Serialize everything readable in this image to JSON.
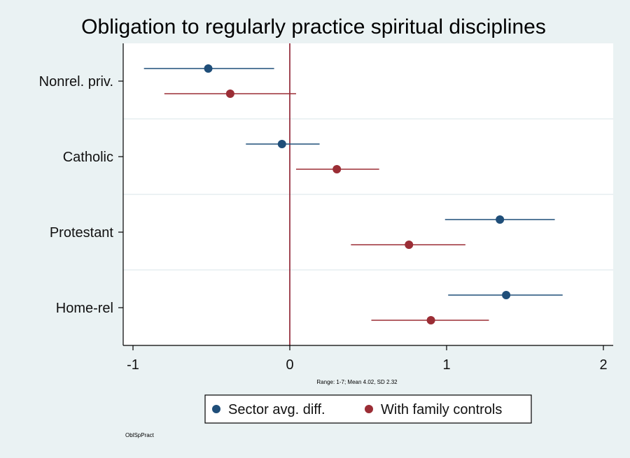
{
  "chart_data": {
    "type": "scatter",
    "subtype": "coefficient-plot",
    "title": "Obligation to regularly practice spiritual disciplines",
    "xlabel": "",
    "ylabel": "",
    "x_note": "Range: 1-7; Mean 4.02, SD 2.32",
    "xlim": [
      -1.05,
      2.05
    ],
    "x_ticks": [
      -1,
      0,
      1,
      2
    ],
    "x_tick_labels": [
      "-1",
      "0",
      "1",
      "2"
    ],
    "reference_line": 0,
    "grid": "horizontal",
    "categories": [
      "Nonrel. priv.",
      "Catholic",
      "Protestant",
      "Home-rel"
    ],
    "series": [
      {
        "name": "Sector avg. diff.",
        "color": "#1f4e79",
        "points": [
          {
            "estimate": -0.52,
            "low": -0.93,
            "high": -0.1
          },
          {
            "estimate": -0.05,
            "low": -0.28,
            "high": 0.19
          },
          {
            "estimate": 1.34,
            "low": 0.99,
            "high": 1.69
          },
          {
            "estimate": 1.38,
            "low": 1.01,
            "high": 1.74
          }
        ]
      },
      {
        "name": "With family controls",
        "color": "#9b2d35",
        "points": [
          {
            "estimate": -0.38,
            "low": -0.8,
            "high": 0.04
          },
          {
            "estimate": 0.3,
            "low": 0.04,
            "high": 0.57
          },
          {
            "estimate": 0.76,
            "low": 0.39,
            "high": 1.12
          },
          {
            "estimate": 0.9,
            "low": 0.52,
            "high": 1.27
          }
        ]
      }
    ],
    "legend_position": "bottom-center"
  },
  "source_tag": "OblSpPract",
  "colors": {
    "background": "#eaf2f3",
    "plot_background": "#ffffff",
    "reference_line": "#8b1a2b",
    "grid": "#e6eef0",
    "axis": "#000000"
  }
}
